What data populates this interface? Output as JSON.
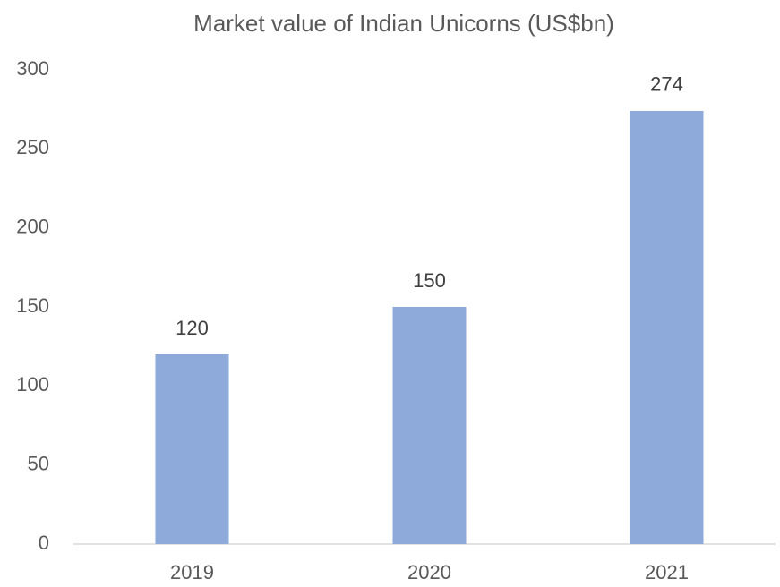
{
  "chart_data": {
    "type": "bar",
    "title": "Market value of Indian Unicorns (US$bn)",
    "categories": [
      "2019",
      "2020",
      "2021"
    ],
    "values": [
      120,
      150,
      274
    ],
    "color": "#8eaadb",
    "ylim": [
      0,
      300
    ],
    "yticks": [
      0,
      50,
      100,
      150,
      200,
      250,
      300
    ],
    "grid": false
  }
}
